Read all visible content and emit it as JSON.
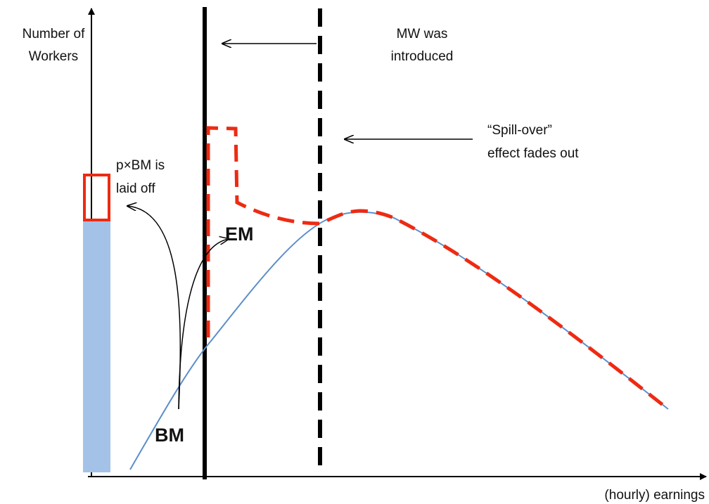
{
  "axes": {
    "y_label": [
      "Number of",
      "Workers"
    ],
    "x_label": "(hourly) earnings"
  },
  "annotations": {
    "minimum_wage": [
      "MW was",
      "introduced"
    ],
    "spill_over": [
      "“Spill-over”",
      "effect fades out"
    ],
    "laid_off": [
      "p×BM is",
      "laid off"
    ],
    "em": "EM",
    "bm": "BM"
  }
}
